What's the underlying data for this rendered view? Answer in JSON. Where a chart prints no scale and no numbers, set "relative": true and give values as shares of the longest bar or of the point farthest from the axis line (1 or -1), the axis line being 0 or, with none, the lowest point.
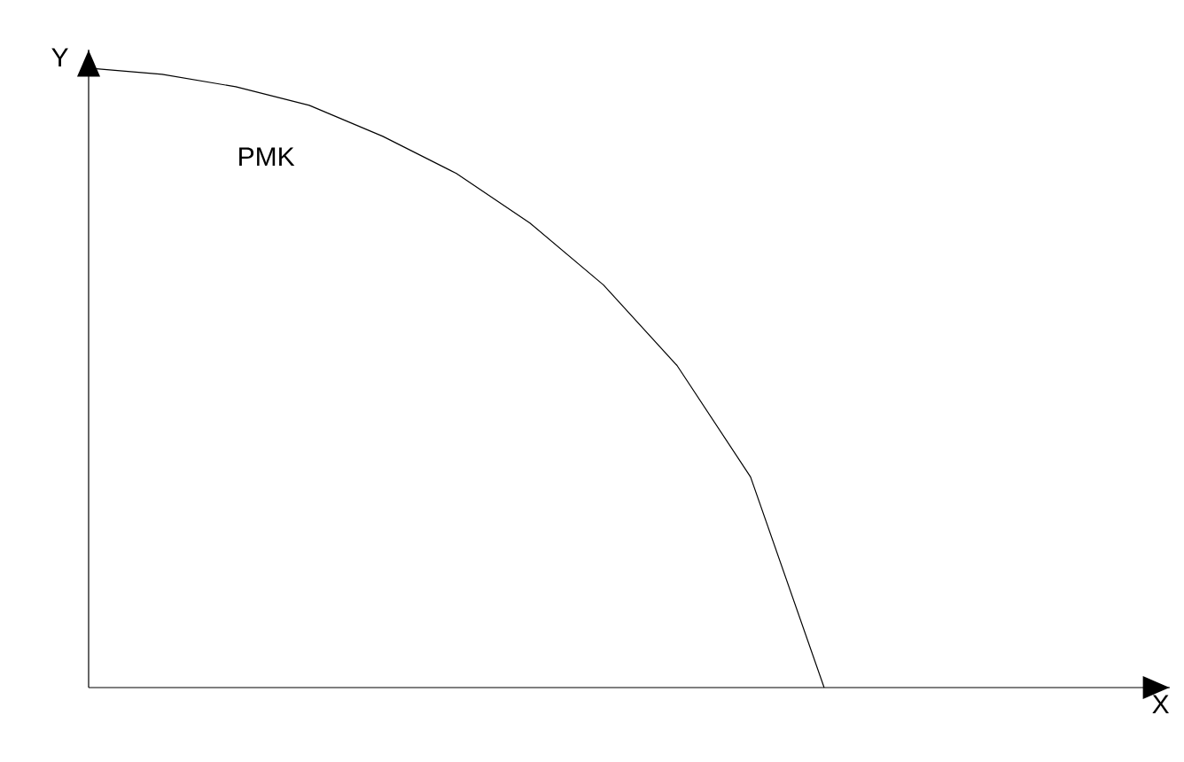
{
  "chart_data": {
    "type": "line",
    "relative": true,
    "annotations": [
      "X"
    ],
    "ylabel": "Y",
    "categories": [
      null,
      null,
      null,
      null,
      null,
      null,
      null,
      null,
      null,
      null,
      null
    ],
    "series": [
      {
        "name": "PMK",
        "color": "#000000",
        "values": [
          1,
          0.99,
          0.97,
          0.94,
          0.89,
          0.83,
          0.75,
          0.65,
          0.52,
          0.34,
          0
        ]
      }
    ]
  }
}
